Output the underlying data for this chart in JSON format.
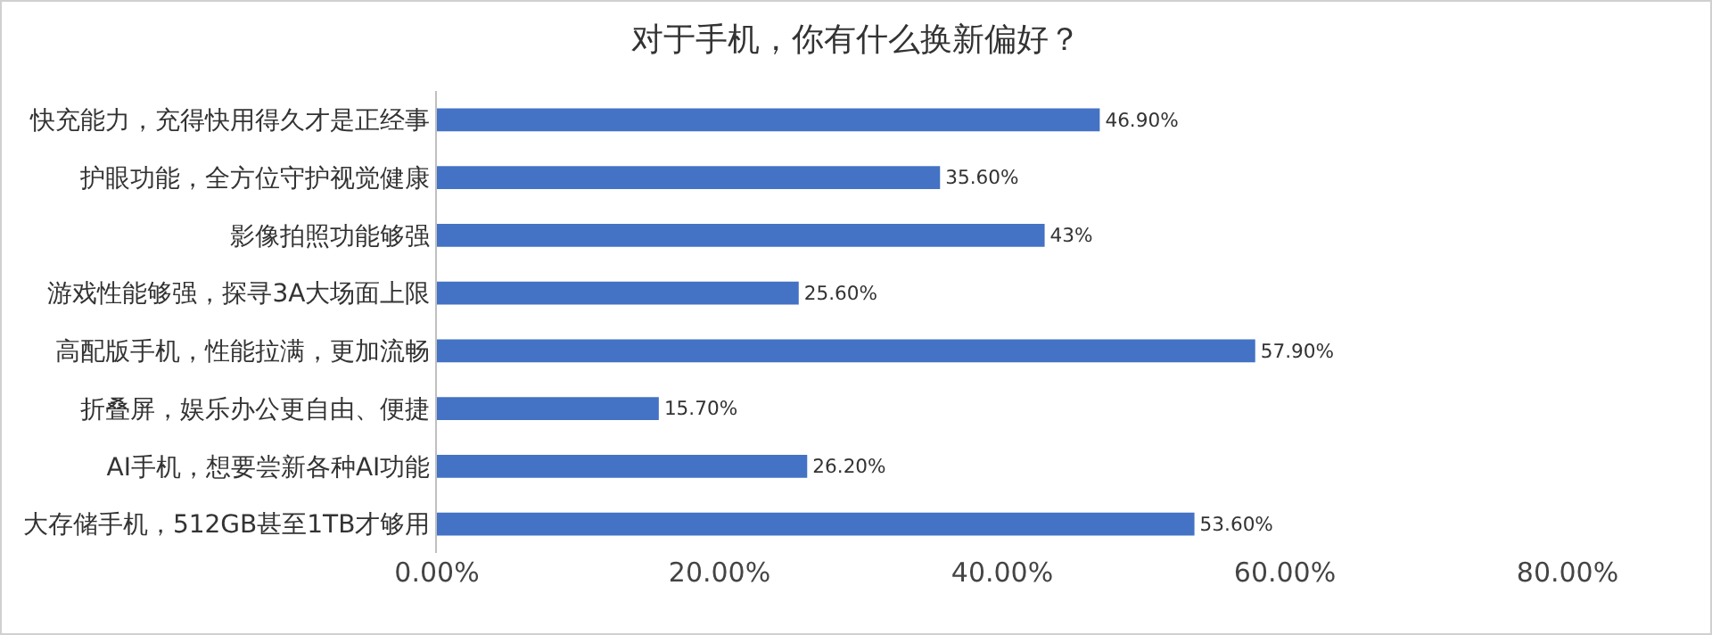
{
  "chart_data": {
    "type": "bar",
    "orientation": "horizontal",
    "title": "对于手机，你有什么换新偏好？",
    "categories": [
      "快充能力，充得快用得久才是正经事",
      "护眼功能，全方位守护视觉健康",
      "影像拍照功能够强",
      "游戏性能够强，探寻3A大场面上限",
      "高配版手机，性能拉满，更加流畅",
      "折叠屏，娱乐办公更自由、便捷",
      "AI手机，想要尝新各种AI功能",
      "大存储手机，512GB甚至1TB才够用"
    ],
    "values": [
      46.9,
      35.6,
      43,
      25.6,
      57.9,
      15.7,
      26.2,
      53.6
    ],
    "value_labels": [
      "46.90%",
      "35.60%",
      "43%",
      "25.60%",
      "57.90%",
      "15.70%",
      "26.20%",
      "53.60%"
    ],
    "color": "#4472c4",
    "xlim": [
      0,
      80
    ],
    "xticks": [
      {
        "value": 0,
        "label": "0.00%"
      },
      {
        "value": 20,
        "label": "20.00%"
      },
      {
        "value": 40,
        "label": "40.00%"
      },
      {
        "value": 60,
        "label": "60.00%"
      },
      {
        "value": 80,
        "label": "80.00%"
      }
    ],
    "grid": false
  }
}
